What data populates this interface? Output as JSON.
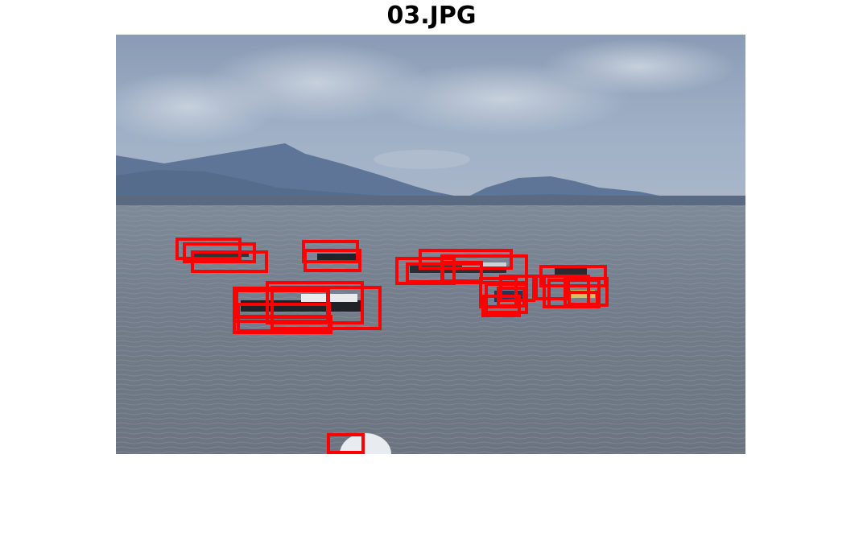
{
  "figure": {
    "title": "03.JPG",
    "box_color": "#ff0000",
    "box_count": 28
  }
}
